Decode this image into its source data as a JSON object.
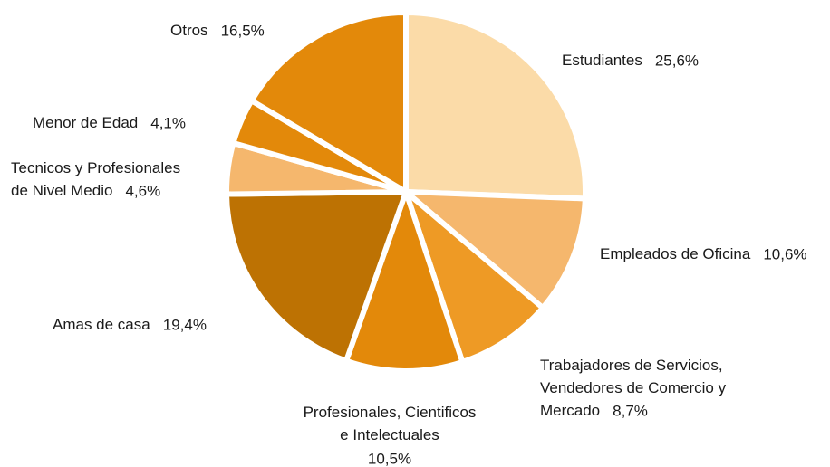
{
  "chart_data": {
    "type": "pie",
    "categories": [
      "Estudiantes",
      "Empleados de Oficina",
      "Trabajadores de Servicios,\nVendedores de Comercio y\nMercado",
      "Profesionales, Cientificos\ne Intelectuales",
      "Amas de casa",
      "Tecnicos y Profesionales\nde Nivel Medio",
      "Menor de Edad",
      "Otros"
    ],
    "values": [
      25.6,
      10.6,
      8.7,
      10.5,
      19.4,
      4.6,
      4.1,
      16.5
    ],
    "value_labels": [
      "25,6%",
      "10,6%",
      "8,7%",
      "10,5%",
      "19,4%",
      "4,6%",
      "4,1%",
      "16,5%"
    ],
    "colors": [
      "#fbdba8",
      "#f5b76d",
      "#ee9a25",
      "#e3890a",
      "#bd7203",
      "#f5b76d",
      "#e3890a",
      "#e3890a"
    ]
  }
}
